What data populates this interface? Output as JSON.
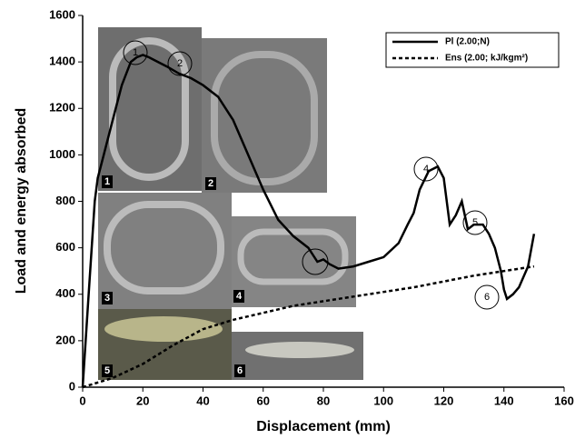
{
  "chart_data": {
    "type": "line",
    "x_label": "Displacement (mm)",
    "y_label": "Load and energy absorbed",
    "xlim": [
      0,
      160
    ],
    "xticks": [
      0,
      20,
      40,
      60,
      80,
      100,
      120,
      140,
      160
    ],
    "ylim": [
      0,
      1600
    ],
    "yticks": [
      0,
      200,
      400,
      600,
      800,
      1000,
      1200,
      1400,
      1600
    ],
    "legend": "top-right",
    "series": [
      {
        "name": "Pl (2.00;N)",
        "color": "#000000",
        "dash": "solid",
        "x": [
          0,
          2,
          4,
          5,
          7,
          10,
          13,
          16,
          18,
          20,
          22,
          25,
          28,
          32,
          36,
          40,
          45,
          50,
          55,
          60,
          65,
          70,
          75,
          78,
          80,
          82,
          85,
          90,
          95,
          100,
          105,
          108,
          110,
          112,
          115,
          118,
          120,
          122,
          124,
          126,
          128,
          130,
          133,
          135,
          137,
          139,
          140,
          141,
          143,
          145,
          148,
          150
        ],
        "values": [
          0,
          400,
          800,
          900,
          1000,
          1150,
          1300,
          1400,
          1420,
          1430,
          1420,
          1400,
          1380,
          1350,
          1330,
          1300,
          1250,
          1150,
          1000,
          850,
          720,
          650,
          600,
          540,
          550,
          530,
          510,
          520,
          540,
          560,
          620,
          700,
          750,
          850,
          930,
          950,
          900,
          700,
          740,
          800,
          680,
          700,
          700,
          660,
          600,
          500,
          420,
          380,
          400,
          430,
          520,
          660
        ]
      },
      {
        "name": "Ens (2.00; kJ/kgm²)",
        "color": "#000000",
        "dash": "dashed",
        "x": [
          0,
          10,
          20,
          30,
          40,
          50,
          60,
          70,
          80,
          90,
          100,
          110,
          120,
          130,
          140,
          150
        ],
        "values": [
          0,
          40,
          100,
          180,
          250,
          290,
          320,
          350,
          370,
          390,
          410,
          430,
          455,
          480,
          500,
          520
        ]
      }
    ],
    "annotations": [
      "1",
      "2",
      "4",
      "5",
      "6"
    ],
    "photo_labels": [
      "1",
      "2",
      "3",
      "4",
      "5",
      "6"
    ]
  }
}
